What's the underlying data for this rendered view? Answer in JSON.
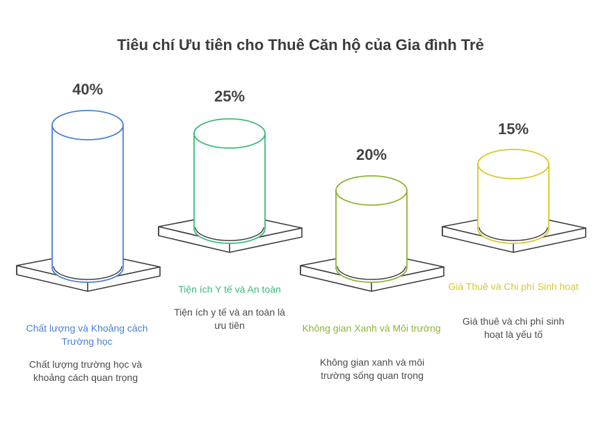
{
  "title": "Tiêu chí Ưu tiên cho Thuê Căn hộ của Gia đình Trẻ",
  "items": [
    {
      "percent": "40%",
      "value": 40,
      "label": "Chất lượng và Khoảng cách Trường học",
      "description": "Chất lượng trường học và khoảng cách quan trọng",
      "color": "#4a80d6"
    },
    {
      "percent": "25%",
      "value": 25,
      "label": "Tiện ích Y tế và An toàn",
      "description": "Tiện ích y tế và an toàn là ưu tiên",
      "color": "#3cba7a"
    },
    {
      "percent": "20%",
      "value": 20,
      "label": "Không gian Xanh và Môi trường",
      "description": "Không gian xanh và môi trường sống quan trọng",
      "color": "#8ab536"
    },
    {
      "percent": "15%",
      "value": 15,
      "label": "Giá Thuê và Chi phí Sinh hoạt",
      "description": "Giá thuê và chi phí sinh hoạt là yếu tố",
      "color": "#d9c72a"
    }
  ]
}
